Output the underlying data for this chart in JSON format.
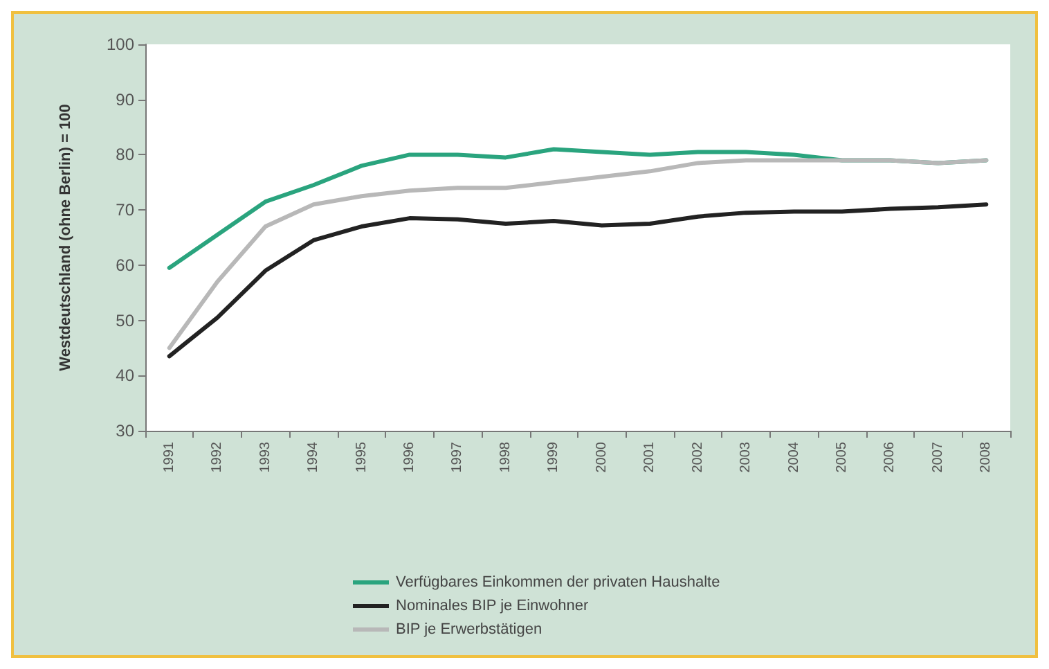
{
  "chart_data": {
    "type": "line",
    "ylabel": "Westdeutschland (ohne Berlin) = 100",
    "categories": [
      "1991",
      "1992",
      "1993",
      "1994",
      "1995",
      "1996",
      "1997",
      "1998",
      "1999",
      "2000",
      "2001",
      "2002",
      "2003",
      "2004",
      "2005",
      "2006",
      "2007",
      "2008"
    ],
    "series": [
      {
        "name": "Verfügbares Einkommen der privaten Haushalte",
        "color": "#2aa47e",
        "values": [
          59.5,
          65.5,
          71.5,
          74.5,
          78,
          80,
          80,
          79.5,
          81,
          80.5,
          80,
          80.5,
          80.5,
          80,
          79,
          79,
          78.5,
          79
        ]
      },
      {
        "name": "Nominales BIP je Einwohner",
        "color": "#222222",
        "values": [
          43.5,
          50.5,
          59,
          64.5,
          67,
          68.5,
          68.3,
          67.5,
          68,
          67.2,
          67.5,
          68.8,
          69.5,
          69.7,
          69.7,
          70.2,
          70.5,
          71
        ]
      },
      {
        "name": "BIP je Erwerbstätigen",
        "color": "#b8b8b8",
        "values": [
          45,
          57,
          67,
          71,
          72.5,
          73.5,
          74,
          74,
          75,
          76,
          77,
          78.5,
          79,
          79,
          79,
          79,
          78.5,
          79
        ]
      }
    ],
    "ylim": [
      30,
      100
    ],
    "yticks": [
      30,
      40,
      50,
      60,
      70,
      80,
      90,
      100
    ],
    "grid": false,
    "legend": "bottom",
    "marker": "none",
    "line_style": "solid"
  }
}
